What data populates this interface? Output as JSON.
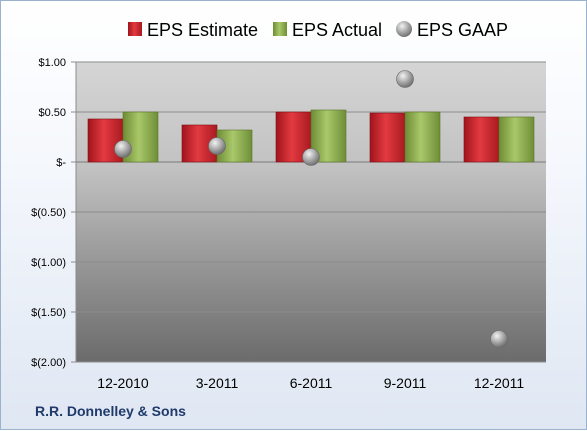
{
  "chart_data": {
    "type": "bar",
    "categories": [
      "12-2010",
      "3-2011",
      "6-2011",
      "9-2011",
      "12-2011"
    ],
    "series": [
      {
        "name": "EPS Estimate",
        "kind": "bar",
        "color": "#c0232a",
        "values": [
          0.43,
          0.37,
          0.5,
          0.49,
          0.45
        ]
      },
      {
        "name": "EPS Actual",
        "kind": "bar",
        "color": "#86a74a",
        "values": [
          0.5,
          0.32,
          0.52,
          0.5,
          0.45
        ]
      },
      {
        "name": "EPS GAAP",
        "kind": "marker",
        "color": "#a3a3a3",
        "values": [
          0.13,
          0.16,
          0.05,
          0.83,
          -1.77
        ]
      }
    ],
    "yticks": [
      1.0,
      0.5,
      0,
      -0.5,
      -1.0,
      -1.5,
      -2.0
    ],
    "ytick_labels": [
      "$1.00",
      "$0.50",
      "$-",
      "$(0.50)",
      "$(1.00)",
      "$(1.50)",
      "$(2.00)"
    ],
    "ylim": [
      -2.0,
      1.0
    ],
    "grid": true,
    "legend_position": "top",
    "title": "",
    "xlabel": "",
    "ylabel": ""
  },
  "footer": {
    "company": "R.R. Donnelley & Sons"
  }
}
